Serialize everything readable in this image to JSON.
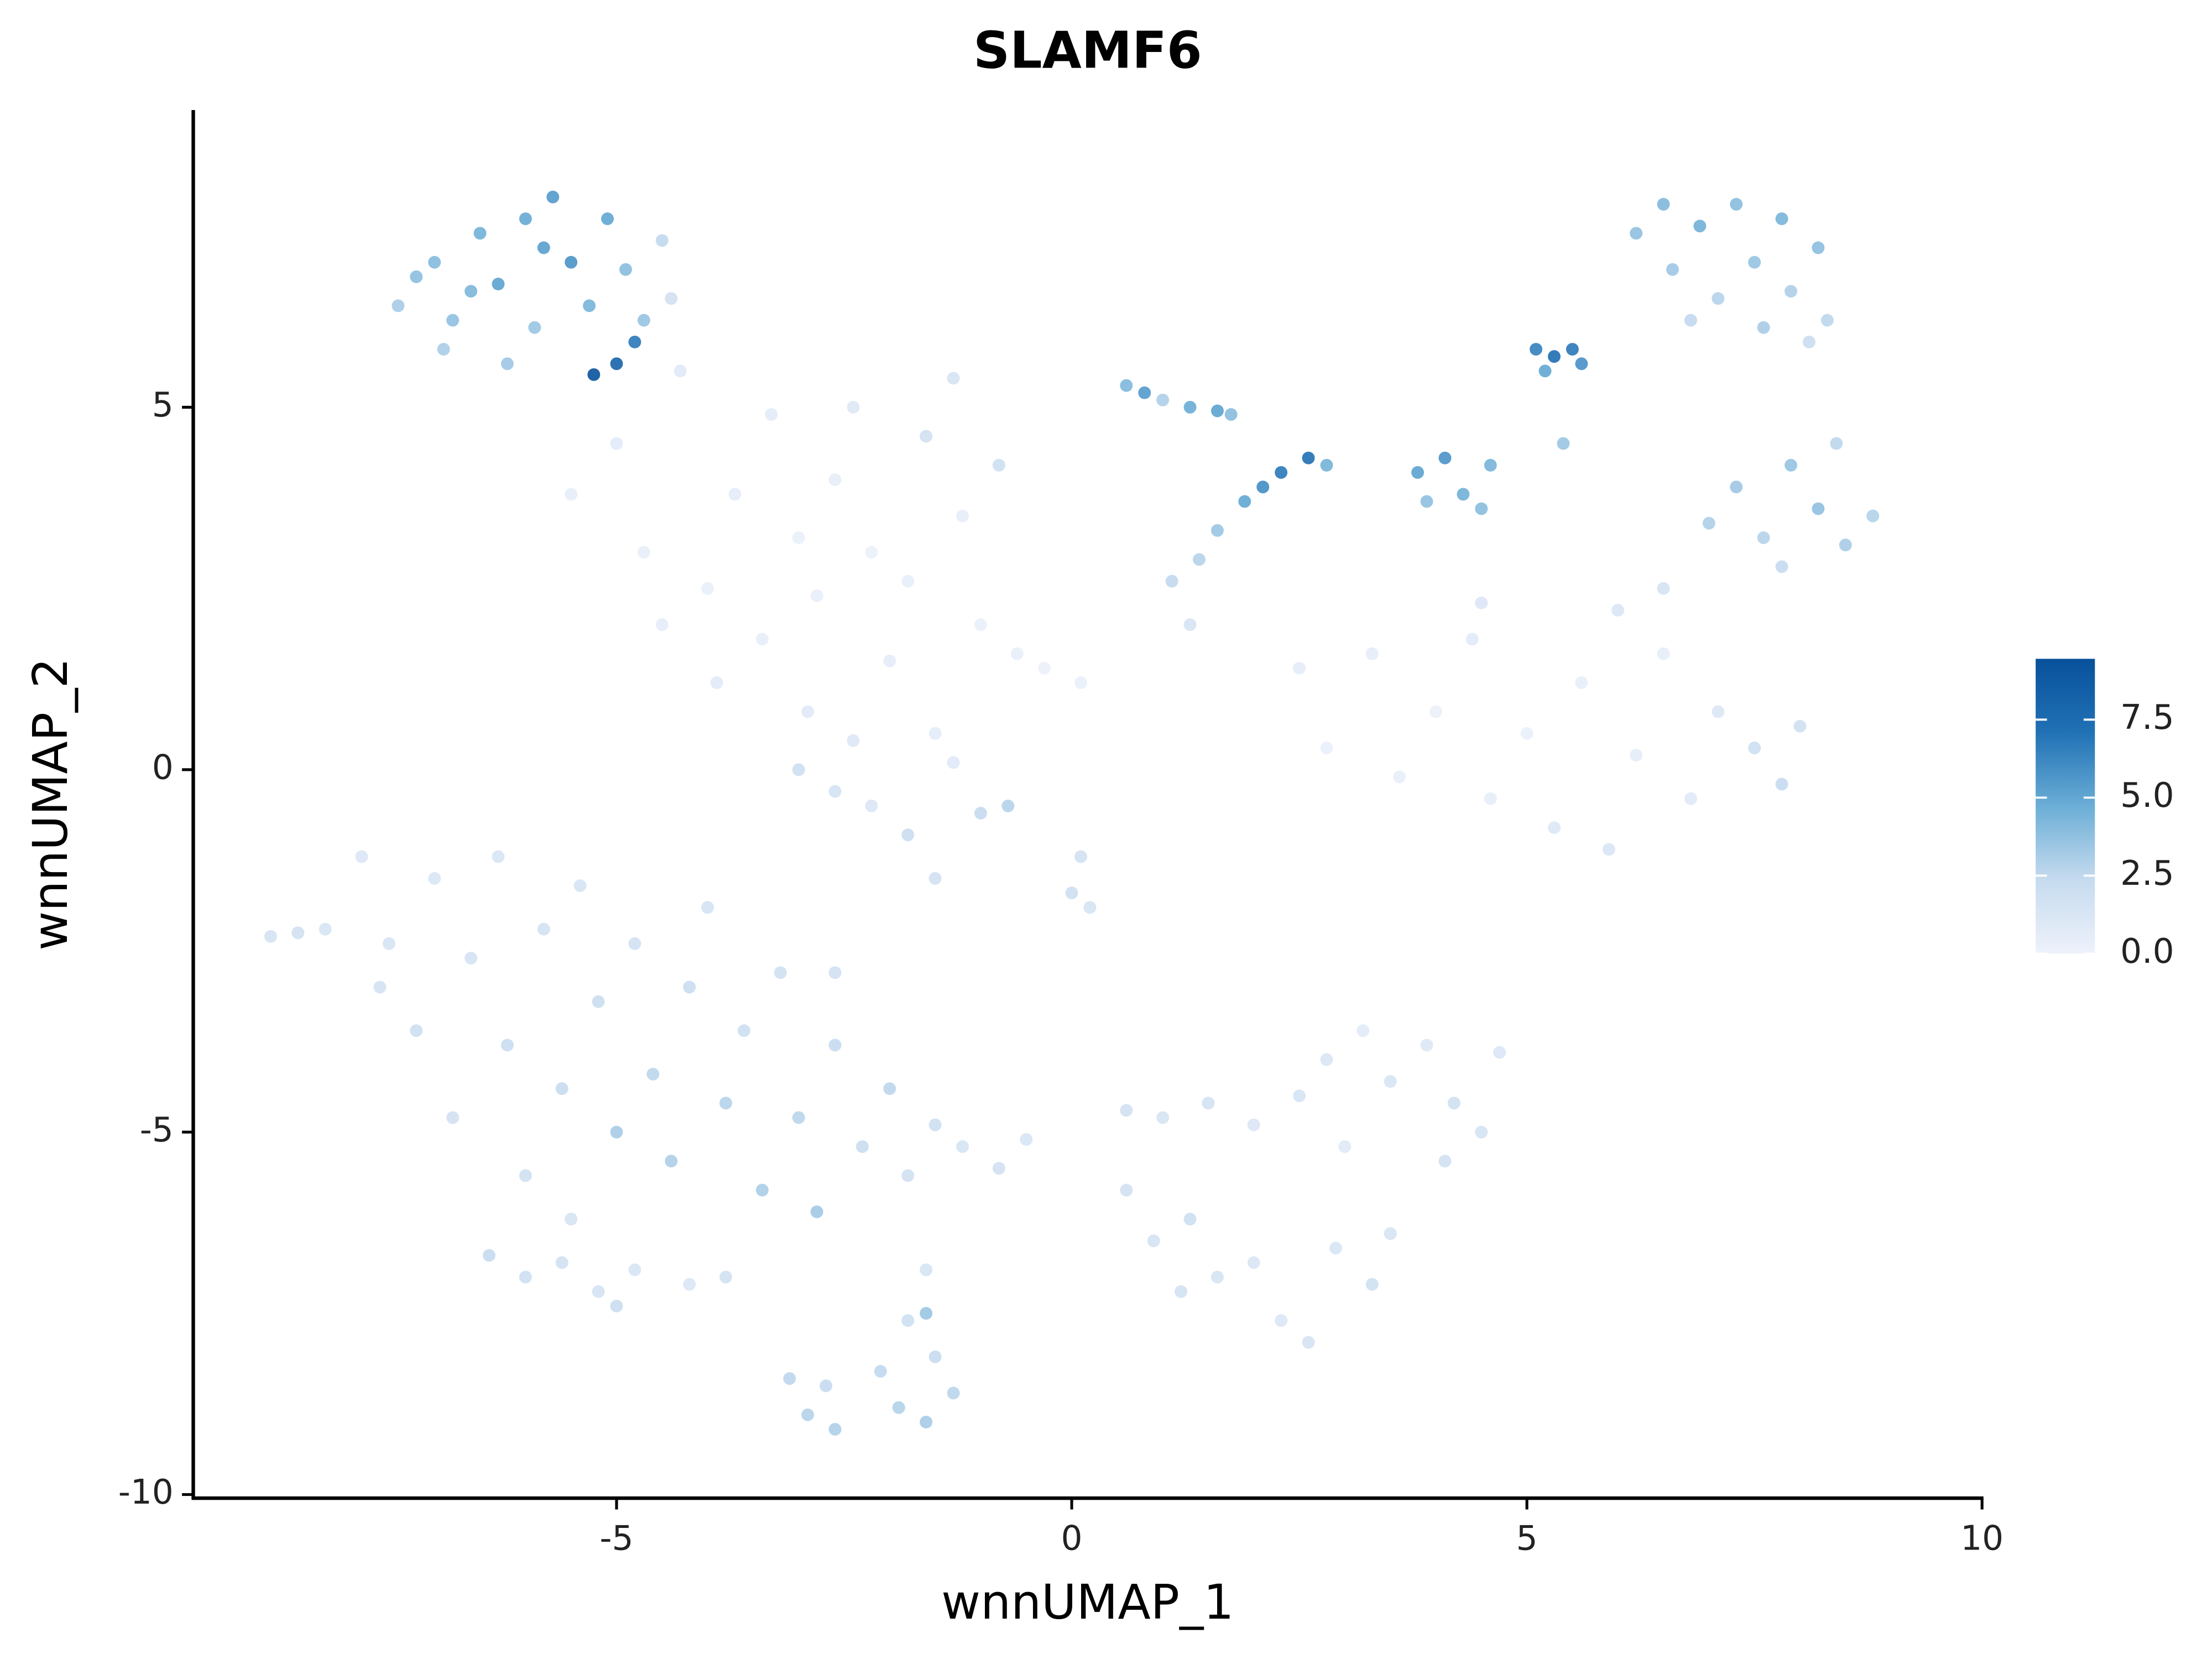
{
  "chart_data": {
    "type": "scatter",
    "title": "SLAMF6",
    "x_label": "wnnUMAP_1",
    "y_label": "wnnUMAP_2",
    "xlim": [
      -9.65,
      10
    ],
    "ylim": [
      -10.05,
      9.1
    ],
    "xticks": [
      -5,
      0,
      5,
      10
    ],
    "yticks": [
      -10,
      -5,
      0,
      5
    ],
    "colorscale": [
      "#eef2fb",
      "#c6dbef",
      "#6baed6",
      "#2171b5",
      "#08519c"
    ],
    "color_lim": [
      0,
      9.45
    ],
    "color_ticks": [
      {
        "value": 0,
        "label": "0.0"
      },
      2.5,
      {
        "value": 5,
        "label": "5.0"
      },
      7.5
    ],
    "x": [
      -7.4,
      -7.0,
      -6.8,
      -6.5,
      -6.3,
      -6.0,
      -5.9,
      -5.7,
      -5.5,
      -5.3,
      -5.1,
      -4.9,
      -4.7,
      -6.9,
      -6.2,
      -5.25,
      -5.0,
      -4.8,
      -7.2,
      -6.6,
      -5.8,
      -4.5,
      -4.4,
      -5.5,
      -5.0,
      -4.7,
      -4.3,
      -4.0,
      -3.7,
      -3.4,
      -3.3,
      -3.0,
      -2.8,
      -2.6,
      -2.4,
      -2.2,
      -2.0,
      -1.8,
      -1.6,
      -1.3,
      -1.2,
      -1.0,
      -0.8,
      -0.6,
      -0.3,
      0.1,
      -4.5,
      -3.9,
      -2.9,
      -1.5,
      -3.0,
      -2.6,
      -2.2,
      -1.8,
      -1.5,
      -1.0,
      -0.7,
      -2.4,
      -1.3,
      0.1,
      0.0,
      0.2,
      0.6,
      0.8,
      1.0,
      1.3,
      1.6,
      1.75,
      1.1,
      1.4,
      1.6,
      1.9,
      2.1,
      2.3,
      2.6,
      2.8,
      1.3,
      6.2,
      6.5,
      6.6,
      6.9,
      7.1,
      7.3,
      7.5,
      7.8,
      7.9,
      8.2,
      8.3,
      8.1,
      6.8,
      7.6,
      5.1,
      5.3,
      5.5,
      5.6,
      5.2,
      3.8,
      4.1,
      4.3,
      4.5,
      3.9,
      4.6,
      5.4,
      7.0,
      7.3,
      7.6,
      7.9,
      8.2,
      8.5,
      8.8,
      8.4,
      7.8,
      6.5,
      6.0,
      2.8,
      3.3,
      3.6,
      4.0,
      4.4,
      4.6,
      5.0,
      5.3,
      5.6,
      5.9,
      6.2,
      6.5,
      6.8,
      7.1,
      7.5,
      7.8,
      8.0,
      2.5,
      4.5,
      -7.8,
      -7.5,
      -7.2,
      -7.0,
      -6.8,
      -6.6,
      -6.3,
      -6.2,
      -6.0,
      -5.8,
      -5.6,
      -5.4,
      -5.2,
      -5.0,
      -4.8,
      -4.6,
      -4.4,
      -4.2,
      -4.0,
      -3.8,
      -3.6,
      -3.4,
      -3.2,
      -3.0,
      -2.8,
      -2.6,
      -2.3,
      -2.0,
      -1.8,
      -1.5,
      -1.2,
      -7.6,
      -5.5,
      -2.6,
      -6.4,
      -6.0,
      -5.6,
      -5.2,
      -4.8,
      -4.2,
      -3.8,
      -5.0,
      -3.1,
      -2.9,
      -2.6,
      -2.7,
      -2.1,
      -1.9,
      -1.6,
      -1.3,
      -1.5,
      -1.8,
      -1.6,
      -0.8,
      -0.5,
      -1.6,
      0.6,
      1.0,
      1.5,
      2.0,
      2.5,
      2.8,
      3.2,
      3.5,
      3.9,
      4.2,
      4.5,
      4.7,
      4.1,
      3.0,
      0.6,
      0.9,
      1.3,
      1.6,
      2.0,
      2.3,
      2.6,
      2.9,
      3.3,
      3.5,
      1.2,
      -8.8,
      -8.5,
      -8.2
    ],
    "y": [
      6.4,
      7.0,
      6.2,
      7.4,
      6.7,
      7.6,
      6.1,
      7.9,
      7.0,
      6.4,
      7.6,
      6.9,
      6.2,
      5.8,
      5.6,
      5.45,
      5.6,
      5.9,
      6.8,
      6.6,
      7.2,
      7.3,
      6.5,
      3.8,
      4.5,
      3.0,
      5.5,
      2.5,
      3.8,
      1.8,
      4.9,
      3.2,
      2.4,
      4.0,
      5.0,
      3.0,
      1.5,
      2.6,
      4.6,
      5.4,
      3.5,
      2.0,
      4.2,
      1.6,
      1.4,
      1.2,
      2.0,
      1.2,
      0.8,
      0.5,
      0.0,
      -0.3,
      -0.5,
      -0.9,
      -1.5,
      -0.6,
      -0.5,
      0.4,
      0.1,
      -1.2,
      -1.7,
      -1.9,
      5.3,
      5.2,
      5.1,
      5.0,
      4.95,
      4.9,
      2.6,
      2.9,
      3.3,
      3.7,
      3.9,
      4.1,
      4.3,
      4.2,
      2.0,
      7.4,
      7.8,
      6.9,
      7.5,
      6.5,
      7.8,
      7.0,
      7.6,
      6.6,
      7.2,
      6.2,
      5.9,
      6.2,
      6.1,
      5.8,
      5.7,
      5.8,
      5.6,
      5.5,
      4.1,
      4.3,
      3.8,
      3.6,
      3.7,
      4.2,
      4.5,
      3.4,
      3.9,
      3.2,
      4.2,
      3.6,
      3.1,
      3.5,
      4.5,
      2.8,
      2.5,
      2.2,
      0.3,
      1.6,
      -0.1,
      0.8,
      1.8,
      -0.4,
      0.5,
      -0.8,
      1.2,
      -1.1,
      0.2,
      1.6,
      -0.4,
      0.8,
      0.3,
      -0.2,
      0.6,
      1.4,
      2.3,
      -1.2,
      -2.4,
      -3.6,
      -1.5,
      -4.8,
      -2.6,
      -1.2,
      -3.8,
      -5.6,
      -2.2,
      -4.4,
      -1.6,
      -3.2,
      -5.0,
      -2.4,
      -4.2,
      -5.4,
      -3.0,
      -1.9,
      -4.6,
      -3.6,
      -5.8,
      -2.8,
      -4.8,
      -6.1,
      -3.8,
      -5.2,
      -4.4,
      -5.6,
      -4.9,
      -5.2,
      -3.0,
      -6.2,
      -2.8,
      -6.7,
      -7.0,
      -6.8,
      -7.2,
      -6.9,
      -7.1,
      -7.0,
      -7.4,
      -8.4,
      -8.9,
      -9.1,
      -8.5,
      -8.3,
      -8.8,
      -9.0,
      -8.6,
      -8.1,
      -7.6,
      -6.9,
      -5.5,
      -5.1,
      -7.5,
      -4.7,
      -4.8,
      -4.6,
      -4.9,
      -4.5,
      -4.0,
      -3.6,
      -4.3,
      -3.8,
      -4.6,
      -5.0,
      -3.9,
      -5.4,
      -5.2,
      -5.8,
      -6.5,
      -6.2,
      -7.0,
      -6.8,
      -7.6,
      -7.9,
      -6.6,
      -7.1,
      -6.4,
      -7.2,
      -2.3,
      -2.25,
      -2.2
    ],
    "values": [
      3.2,
      4.1,
      3.8,
      4.6,
      5.2,
      4.9,
      3.5,
      5.5,
      5.8,
      4.4,
      5.0,
      4.0,
      3.6,
      3.1,
      3.4,
      9.4,
      8.1,
      6.8,
      3.9,
      4.3,
      5.3,
      2.5,
      1.8,
      0.5,
      0.8,
      0.4,
      0.9,
      0.3,
      0.6,
      0.5,
      0.7,
      0.3,
      0.4,
      0.5,
      1.0,
      0.2,
      0.6,
      0.4,
      1.8,
      1.5,
      0.5,
      0.3,
      2.0,
      0.4,
      0.2,
      0.3,
      0.6,
      0.8,
      0.9,
      0.7,
      2.0,
      1.6,
      1.2,
      2.2,
      1.8,
      2.4,
      2.8,
      1.0,
      0.9,
      1.8,
      2.0,
      1.5,
      4.2,
      5.5,
      3.0,
      4.8,
      5.2,
      4.0,
      2.5,
      2.8,
      3.5,
      5.0,
      6.0,
      6.8,
      7.2,
      4.5,
      1.5,
      3.8,
      4.2,
      3.4,
      4.6,
      2.8,
      4.0,
      3.6,
      4.4,
      3.0,
      3.9,
      2.6,
      2.2,
      2.5,
      3.2,
      6.5,
      7.4,
      6.8,
      5.9,
      5.0,
      5.2,
      5.8,
      4.6,
      4.0,
      3.8,
      4.4,
      3.5,
      3.0,
      3.4,
      2.8,
      3.6,
      3.8,
      3.2,
      2.9,
      2.6,
      2.4,
      1.6,
      1.3,
      0.3,
      0.6,
      0.4,
      0.2,
      0.8,
      0.5,
      0.3,
      1.0,
      0.4,
      1.3,
      0.6,
      0.5,
      0.9,
      1.1,
      2.0,
      2.4,
      1.9,
      0.6,
      1.2,
      1.2,
      1.5,
      2.0,
      1.3,
      1.8,
      1.6,
      1.4,
      2.2,
      1.9,
      1.7,
      2.3,
      1.5,
      2.1,
      3.2,
      1.8,
      2.6,
      3.0,
      2.2,
      1.6,
      2.8,
      2.0,
      3.1,
      1.9,
      2.7,
      3.3,
      2.4,
      2.2,
      2.6,
      1.8,
      2.0,
      1.5,
      1.7,
      1.5,
      1.8,
      2.4,
      2.0,
      1.8,
      1.6,
      1.4,
      1.2,
      1.8,
      2.2,
      2.6,
      2.8,
      3.0,
      2.4,
      2.5,
      2.9,
      3.2,
      2.7,
      2.3,
      2.0,
      1.5,
      1.8,
      1.4,
      3.5,
      1.8,
      1.5,
      1.7,
      1.2,
      1.5,
      1.3,
      0.8,
      1.4,
      1.0,
      1.9,
      1.6,
      1.2,
      1.8,
      0.9,
      1.8,
      1.6,
      2.0,
      1.5,
      1.3,
      1.2,
      1.6,
      1.4,
      1.9,
      1.5,
      1.7,
      1.6,
      1.8,
      1.4
    ]
  }
}
